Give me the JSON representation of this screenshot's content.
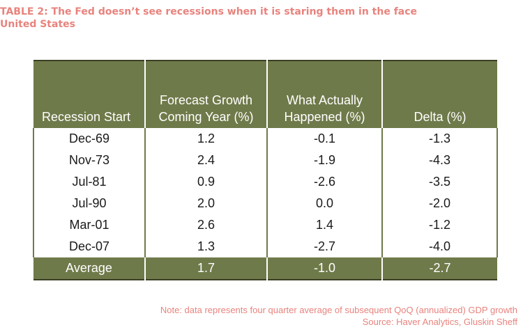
{
  "title": {
    "line1": "TABLE 2: The Fed doesn’t see recessions when it is staring them in the face",
    "line2": "United States"
  },
  "table": {
    "headers": {
      "col1": [
        "Recession Start"
      ],
      "col2": [
        "Forecast Growth",
        "Coming Year (%)"
      ],
      "col3": [
        "What Actually",
        "Happened (%)"
      ],
      "col4": [
        "Delta (%)"
      ]
    },
    "rows": [
      [
        "Dec-69",
        "1.2",
        "-0.1",
        "-1.3"
      ],
      [
        "Nov-73",
        "2.4",
        "-1.9",
        "-4.3"
      ],
      [
        "Jul-81",
        "0.9",
        "-2.6",
        "-3.5"
      ],
      [
        "Jul-90",
        "2.0",
        "0.0",
        "-2.0"
      ],
      [
        "Mar-01",
        "2.6",
        "1.4",
        "-1.2"
      ],
      [
        "Dec-07",
        "1.3",
        "-2.7",
        "-4.0"
      ]
    ],
    "footer": [
      "Average",
      "1.7",
      "-1.0",
      "-2.7"
    ]
  },
  "note": {
    "line1": "Note: data represents four quarter average of subsequent QoQ (annualized) GDP growth",
    "line2": "Source: Haver Analytics, Gluskin Sheff"
  },
  "colors": {
    "header_bg": "#6f7a4a",
    "title_text": "#e8837d"
  }
}
